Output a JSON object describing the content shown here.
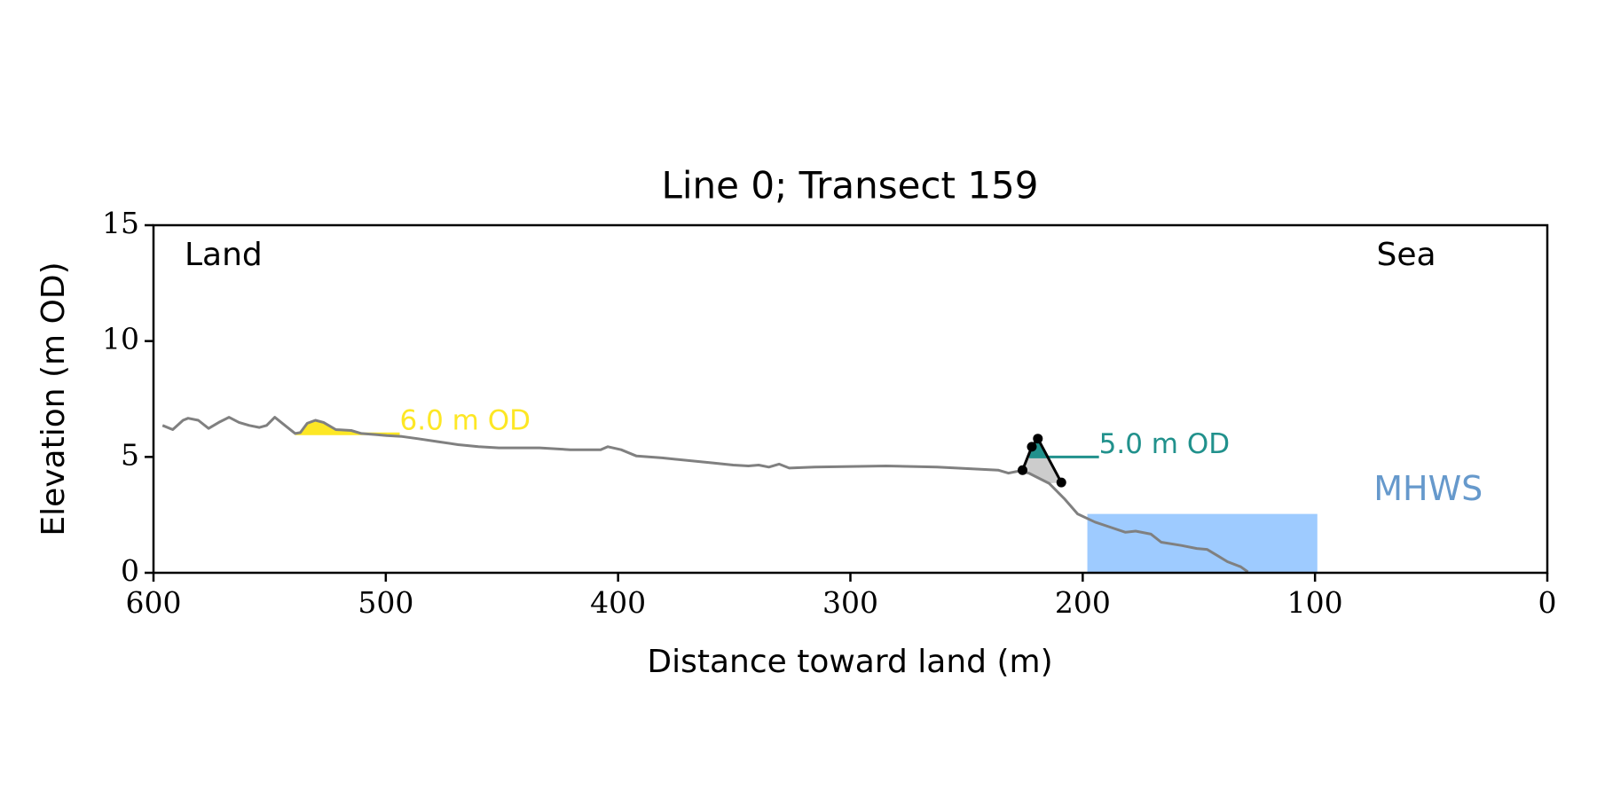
{
  "chart_data": {
    "type": "line",
    "title": "Line 0; Transect 159",
    "xlabel": "Distance toward land (m)",
    "ylabel": "Elevation (m OD)",
    "xlim": [
      600,
      0
    ],
    "ylim": [
      0,
      15
    ],
    "xticks": [
      600,
      500,
      400,
      300,
      200,
      100,
      0
    ],
    "yticks": [
      0,
      5,
      10,
      15
    ],
    "land_label": "Land",
    "sea_label": "Sea",
    "profile": {
      "color": "#808080",
      "x": [
        596.1,
        591.7,
        587.3,
        585.1,
        580.7,
        576.3,
        571.9,
        567.5,
        563.2,
        558.8,
        554.4,
        551.3,
        547.8,
        543.4,
        539.0,
        536.8,
        533.8,
        530.3,
        526.8,
        521.5,
        514.9,
        510.5,
        503.9,
        499.6,
        493.0,
        486.4,
        477.6,
        468.9,
        460.1,
        451.3,
        442.5,
        433.8,
        420.6,
        407.5,
        404.4,
        398.7,
        392.1,
        381.1,
        359.2,
        350.4,
        343.9,
        339.5,
        335.1,
        330.7,
        326.3,
        315.4,
        284.6,
        262.7,
        236.4,
        232.0,
        227.6,
        223.2,
        214.5,
        207.9,
        202.2,
        194.7,
        188.2,
        181.6,
        177.2,
        170.6,
        166.2,
        157.5,
        150.9,
        146.5,
        142.1,
        137.7,
        132.0,
        128.9
      ],
      "values": [
        6.36,
        6.18,
        6.58,
        6.67,
        6.58,
        6.23,
        6.49,
        6.71,
        6.49,
        6.36,
        6.27,
        6.36,
        6.71,
        6.36,
        6.01,
        6.05,
        6.45,
        6.58,
        6.49,
        6.18,
        6.14,
        6.01,
        5.96,
        5.92,
        5.88,
        5.79,
        5.66,
        5.53,
        5.44,
        5.39,
        5.39,
        5.39,
        5.31,
        5.31,
        5.44,
        5.31,
        5.04,
        4.96,
        4.74,
        4.65,
        4.61,
        4.65,
        4.56,
        4.69,
        4.52,
        4.56,
        4.61,
        4.56,
        4.43,
        4.3,
        4.39,
        4.3,
        3.86,
        3.2,
        2.54,
        2.19,
        1.97,
        1.75,
        1.8,
        1.67,
        1.32,
        1.18,
        1.05,
        1.01,
        0.75,
        0.48,
        0.26,
        0.04
      ]
    },
    "dune": {
      "color": "#000000",
      "x": [
        225.9,
        221.9,
        219.3,
        209.2
      ],
      "values": [
        4.43,
        5.44,
        5.79,
        3.9
      ]
    },
    "thresholds": [
      {
        "label": "6.0 m OD",
        "value": 6.0,
        "xrange": [
          539,
          494
        ],
        "color": "#fde725"
      },
      {
        "label": "5.0 m OD",
        "value": 5.0,
        "xrange": [
          223,
          193
        ],
        "color": "#21918c"
      }
    ],
    "mhws": {
      "label": "MHWS",
      "value": 2.54,
      "xrange": [
        198,
        99
      ],
      "color": "#9ecbff"
    },
    "dune_fill_color": "#cccccc"
  }
}
